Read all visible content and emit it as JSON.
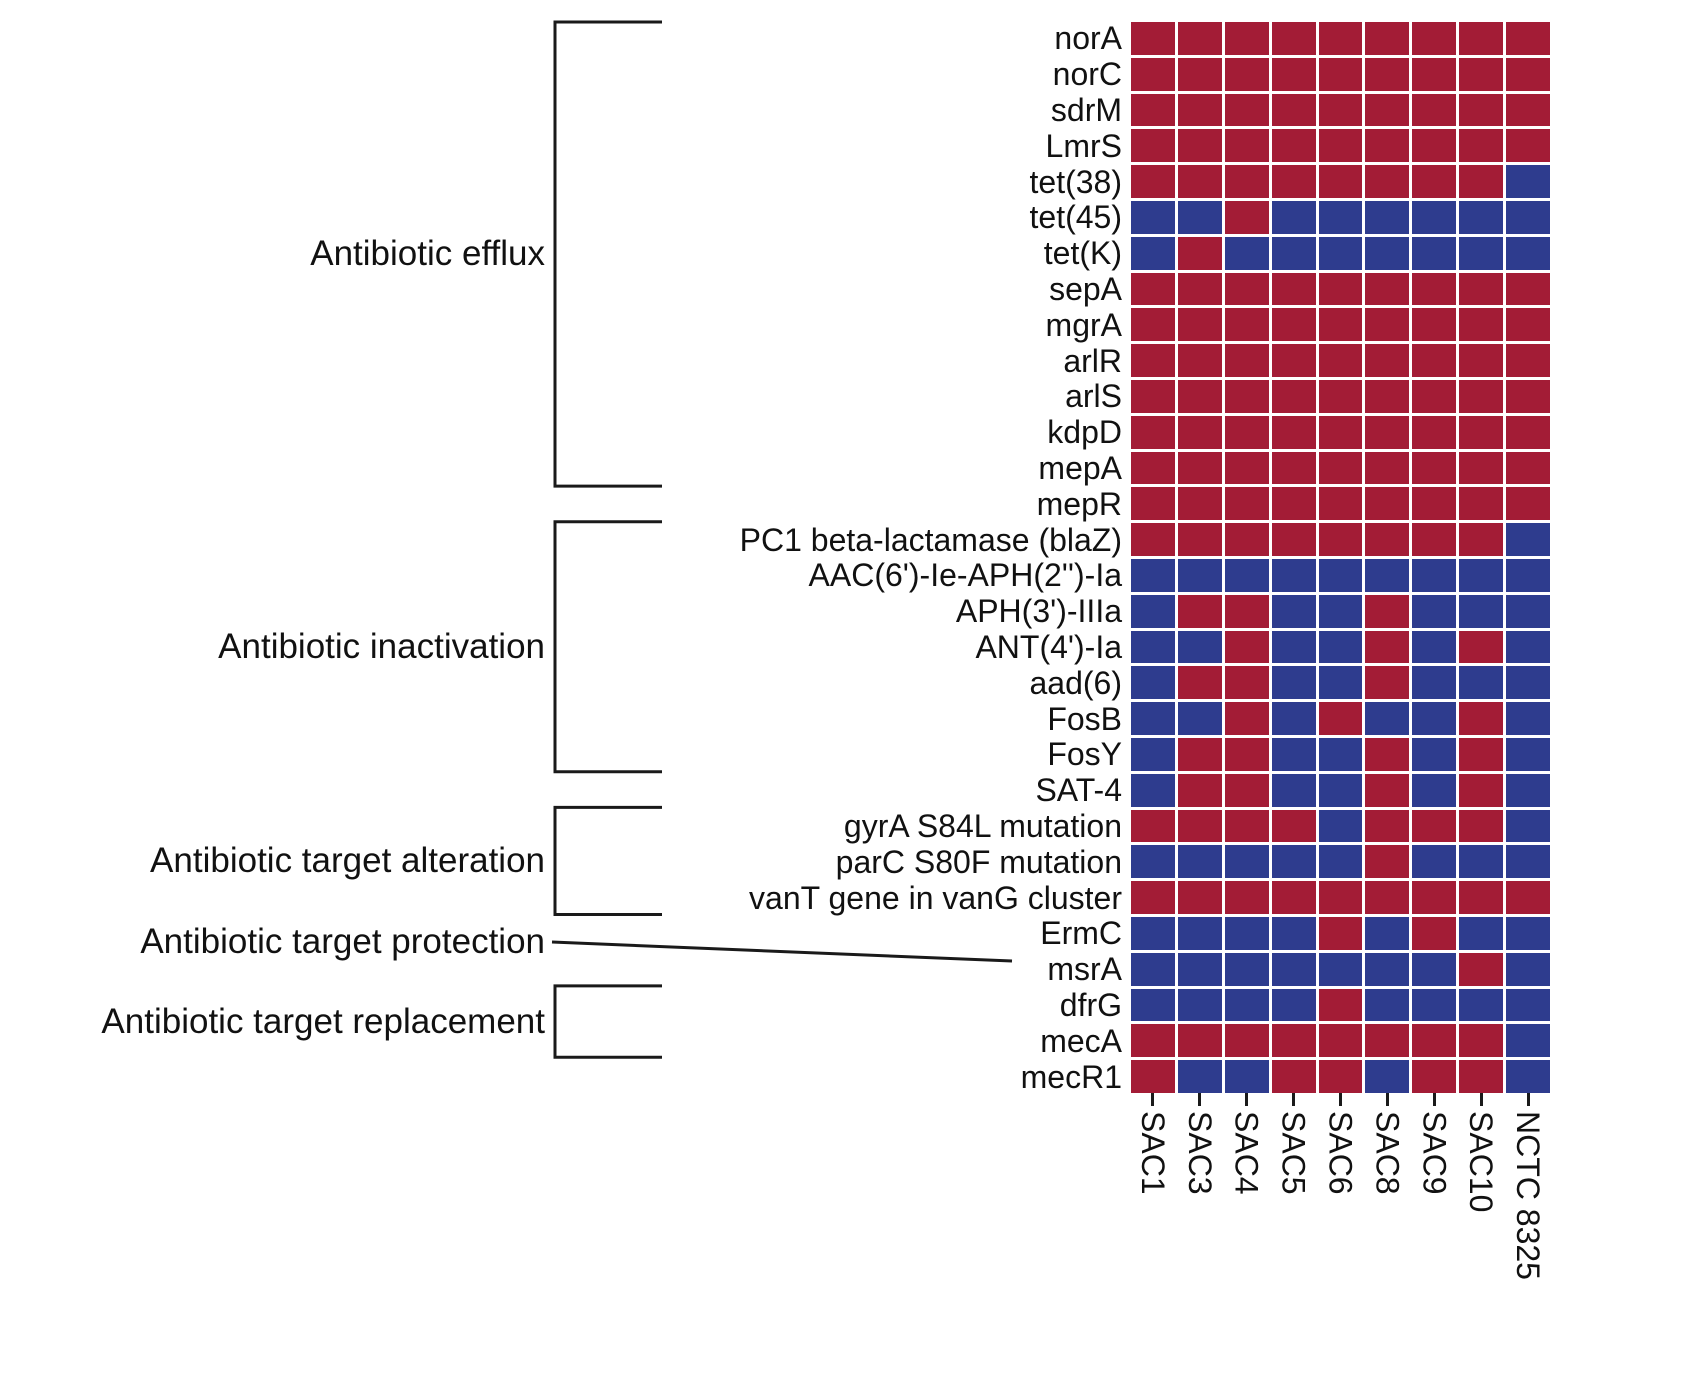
{
  "chart_data": {
    "type": "heatmap",
    "title": "",
    "columns": [
      "SAC1",
      "SAC3",
      "SAC4",
      "SAC5",
      "SAC6",
      "SAC8",
      "SAC9",
      "SAC10",
      "NCTC 8325"
    ],
    "value_colors": {
      "1": "#a31c36",
      "0": "#2e3c8e"
    },
    "grid_line_color": "#ffffff",
    "line_color": "#1a1a1a",
    "text_color": "#111111",
    "categories": [
      {
        "label": "Antibiotic efflux",
        "row_start": 0,
        "row_end": 13
      },
      {
        "label": "Antibiotic inactivation",
        "row_start": 14,
        "row_end": 21
      },
      {
        "label": "Antibiotic target alteration",
        "row_start": 22,
        "row_end": 25
      },
      {
        "label": "Antibiotic target protection",
        "row_start": 26,
        "row_end": 26
      },
      {
        "label": "Antibiotic target replacement",
        "row_start": 27,
        "row_end": 29
      }
    ],
    "rows": [
      {
        "gene": "norA",
        "values": [
          1,
          1,
          1,
          1,
          1,
          1,
          1,
          1,
          1
        ]
      },
      {
        "gene": "norC",
        "values": [
          1,
          1,
          1,
          1,
          1,
          1,
          1,
          1,
          1
        ]
      },
      {
        "gene": "sdrM",
        "values": [
          1,
          1,
          1,
          1,
          1,
          1,
          1,
          1,
          1
        ]
      },
      {
        "gene": "LmrS",
        "values": [
          1,
          1,
          1,
          1,
          1,
          1,
          1,
          1,
          1
        ]
      },
      {
        "gene": "tet(38)",
        "values": [
          1,
          1,
          1,
          1,
          1,
          1,
          1,
          1,
          0
        ]
      },
      {
        "gene": "tet(45)",
        "values": [
          0,
          0,
          1,
          0,
          0,
          0,
          0,
          0,
          0
        ]
      },
      {
        "gene": "tet(K)",
        "values": [
          0,
          1,
          0,
          0,
          0,
          0,
          0,
          0,
          0
        ]
      },
      {
        "gene": "sepA",
        "values": [
          1,
          1,
          1,
          1,
          1,
          1,
          1,
          1,
          1
        ]
      },
      {
        "gene": "mgrA",
        "values": [
          1,
          1,
          1,
          1,
          1,
          1,
          1,
          1,
          1
        ]
      },
      {
        "gene": "arlR",
        "values": [
          1,
          1,
          1,
          1,
          1,
          1,
          1,
          1,
          1
        ]
      },
      {
        "gene": "arlS",
        "values": [
          1,
          1,
          1,
          1,
          1,
          1,
          1,
          1,
          1
        ]
      },
      {
        "gene": "kdpD",
        "values": [
          1,
          1,
          1,
          1,
          1,
          1,
          1,
          1,
          1
        ]
      },
      {
        "gene": "mepA",
        "values": [
          1,
          1,
          1,
          1,
          1,
          1,
          1,
          1,
          1
        ]
      },
      {
        "gene": "mepR",
        "values": [
          1,
          1,
          1,
          1,
          1,
          1,
          1,
          1,
          1
        ]
      },
      {
        "gene": "PC1 beta-lactamase (blaZ)",
        "values": [
          1,
          1,
          1,
          1,
          1,
          1,
          1,
          1,
          0
        ]
      },
      {
        "gene": "AAC(6')-Ie-APH(2'')-Ia",
        "values": [
          0,
          0,
          0,
          0,
          0,
          0,
          0,
          0,
          0
        ]
      },
      {
        "gene": "APH(3')-IIIa",
        "values": [
          0,
          1,
          1,
          0,
          0,
          1,
          0,
          0,
          0
        ]
      },
      {
        "gene": "ANT(4')-Ia",
        "values": [
          0,
          0,
          1,
          0,
          0,
          1,
          0,
          1,
          0
        ]
      },
      {
        "gene": "aad(6)",
        "values": [
          0,
          1,
          1,
          0,
          0,
          1,
          0,
          0,
          0
        ]
      },
      {
        "gene": "FosB",
        "values": [
          0,
          0,
          1,
          0,
          1,
          0,
          0,
          1,
          0
        ]
      },
      {
        "gene": "FosY",
        "values": [
          0,
          1,
          1,
          0,
          0,
          1,
          0,
          1,
          0
        ]
      },
      {
        "gene": "SAT-4",
        "values": [
          0,
          1,
          1,
          0,
          0,
          1,
          0,
          1,
          0
        ]
      },
      {
        "gene": "gyrA S84L mutation",
        "values": [
          1,
          1,
          1,
          1,
          0,
          1,
          1,
          1,
          0
        ]
      },
      {
        "gene": "parC S80F mutation",
        "values": [
          0,
          0,
          0,
          0,
          0,
          1,
          0,
          0,
          0
        ]
      },
      {
        "gene": "vanT gene in vanG cluster",
        "values": [
          1,
          1,
          1,
          1,
          1,
          1,
          1,
          1,
          1
        ]
      },
      {
        "gene": "ErmC",
        "values": [
          0,
          0,
          0,
          0,
          1,
          0,
          1,
          0,
          0
        ]
      },
      {
        "gene": "msrA",
        "values": [
          0,
          0,
          0,
          0,
          0,
          0,
          0,
          1,
          0
        ]
      },
      {
        "gene": "dfrG",
        "values": [
          0,
          0,
          0,
          0,
          1,
          0,
          0,
          0,
          0
        ]
      },
      {
        "gene": "mecA",
        "values": [
          1,
          1,
          1,
          1,
          1,
          1,
          1,
          1,
          0
        ]
      },
      {
        "gene": "mecR1",
        "values": [
          1,
          0,
          0,
          1,
          1,
          0,
          1,
          1,
          0
        ]
      }
    ]
  }
}
